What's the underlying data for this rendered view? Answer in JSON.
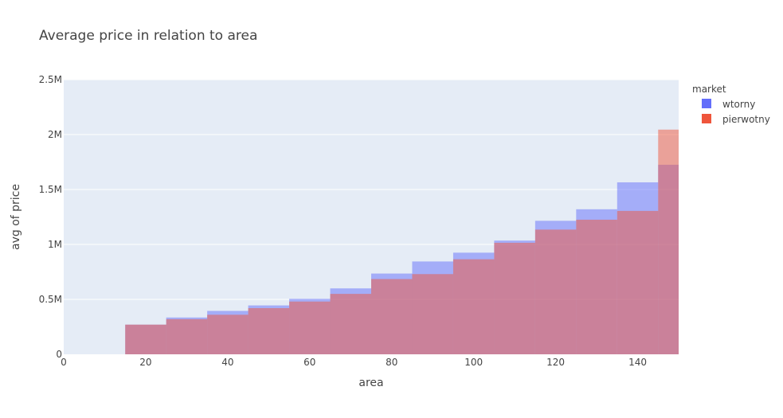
{
  "chart_data": {
    "type": "bar",
    "title": "Average price in relation to area",
    "xlabel": "area",
    "ylabel": "avg of price",
    "xlim": [
      0,
      150
    ],
    "ylim": [
      0,
      2500000
    ],
    "xticks": [
      {
        "value": 0,
        "label": "0"
      },
      {
        "value": 20,
        "label": "20"
      },
      {
        "value": 40,
        "label": "40"
      },
      {
        "value": 60,
        "label": "60"
      },
      {
        "value": 80,
        "label": "80"
      },
      {
        "value": 100,
        "label": "100"
      },
      {
        "value": 120,
        "label": "120"
      },
      {
        "value": 140,
        "label": "140"
      }
    ],
    "yticks": [
      {
        "value": 0,
        "label": "0"
      },
      {
        "value": 500000,
        "label": "0.5M"
      },
      {
        "value": 1000000,
        "label": "1M"
      },
      {
        "value": 1500000,
        "label": "1.5M"
      },
      {
        "value": 2000000,
        "label": "2M"
      },
      {
        "value": 2500000,
        "label": "2.5M"
      }
    ],
    "bins": [
      [
        15,
        25
      ],
      [
        25,
        35
      ],
      [
        35,
        45
      ],
      [
        45,
        55
      ],
      [
        55,
        65
      ],
      [
        65,
        75
      ],
      [
        75,
        85
      ],
      [
        85,
        95
      ],
      [
        95,
        105
      ],
      [
        105,
        115
      ],
      [
        115,
        125
      ],
      [
        125,
        135
      ],
      [
        135,
        145
      ],
      [
        145,
        150
      ]
    ],
    "legend_title": "market",
    "legend_position": "top-right",
    "series": [
      {
        "name": "wtorny",
        "color": "#636efa",
        "values": [
          270000,
          335000,
          395000,
          445000,
          505000,
          600000,
          735000,
          845000,
          925000,
          1035000,
          1215000,
          1320000,
          1565000,
          1725000
        ]
      },
      {
        "name": "pierwotny",
        "color": "#ef553b",
        "values": [
          270000,
          320000,
          360000,
          420000,
          480000,
          550000,
          685000,
          730000,
          865000,
          1015000,
          1135000,
          1225000,
          1305000,
          2045000
        ]
      }
    ]
  }
}
